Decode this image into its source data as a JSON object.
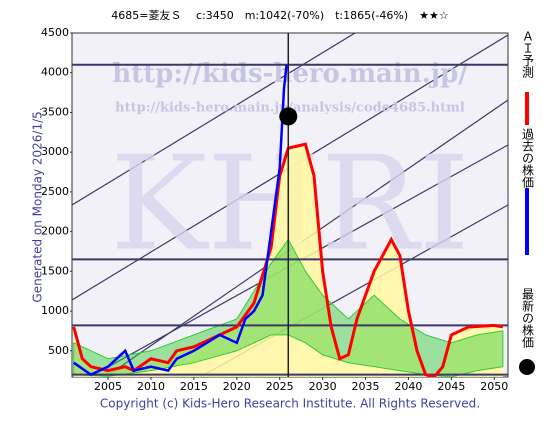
{
  "chart_data": {
    "type": "line",
    "title": "4685=菱友Ｓ　 c:3450　m:1042(-70%)　t:1865(-46%)　★★☆",
    "side_note": "Generated on Monday 2026/1/5.",
    "footer": "Copyright (c) Kids-Hero Research Institute. All Rights Reserved.",
    "watermarks": [
      "http://kids-hero.main.jp/",
      "http://kids-hero.main.jp/analysis/code4685.html",
      "KHRI"
    ],
    "xlim": [
      2000.8,
      2051.6
    ],
    "ylim": [
      170,
      4500
    ],
    "xticks": [
      2005,
      2010,
      2015,
      2020,
      2025,
      2030,
      2035,
      2040,
      2045,
      2050
    ],
    "yticks": [
      500,
      1000,
      1500,
      2000,
      2500,
      3000,
      3500,
      4000,
      4500
    ],
    "hlines": [
      4100,
      1650,
      820,
      200
    ],
    "series": [
      {
        "name": "ＡＩ予測",
        "color": "#ff0000",
        "x": [
          2001,
          2002,
          2003,
          2005,
          2007,
          2008,
          2010,
          2012,
          2013,
          2015,
          2018,
          2020,
          2022,
          2024,
          2025,
          2026,
          2028,
          2029,
          2030,
          2031,
          2032,
          2033,
          2034,
          2036,
          2038,
          2039,
          2040,
          2041,
          2042,
          2043,
          2044,
          2045,
          2047,
          2050,
          2051
        ],
        "values": [
          800,
          400,
          300,
          250,
          300,
          250,
          400,
          350,
          500,
          550,
          700,
          800,
          1100,
          1800,
          2700,
          3050,
          3100,
          2700,
          1500,
          800,
          400,
          450,
          900,
          1500,
          1900,
          1700,
          1000,
          500,
          200,
          170,
          300,
          700,
          800,
          820,
          800
        ]
      },
      {
        "name": "過去の株価",
        "color": "#0000ff",
        "x": [
          2001,
          2003,
          2005,
          2007,
          2008,
          2010,
          2012,
          2013,
          2015,
          2018,
          2020,
          2021,
          2022,
          2023,
          2024,
          2025,
          2025.5,
          2025.8
        ],
        "values": [
          350,
          200,
          300,
          500,
          250,
          300,
          250,
          400,
          500,
          700,
          600,
          900,
          1000,
          1200,
          2000,
          2800,
          3800,
          4100
        ]
      }
    ],
    "band": {
      "color": "#33cc33",
      "x": [
        2001,
        2005,
        2010,
        2015,
        2020,
        2024,
        2026,
        2028,
        2030,
        2033,
        2036,
        2039,
        2042,
        2045,
        2048,
        2051
      ],
      "upper": [
        600,
        400,
        500,
        700,
        900,
        1600,
        1900,
        1500,
        1200,
        900,
        1200,
        900,
        700,
        600,
        700,
        750
      ],
      "lower": [
        200,
        180,
        250,
        350,
        500,
        700,
        700,
        600,
        450,
        350,
        300,
        250,
        200,
        170,
        250,
        300
      ]
    },
    "latest": {
      "name": "最新の株価",
      "x": 2026,
      "value": 3450,
      "color": "#000000"
    }
  }
}
